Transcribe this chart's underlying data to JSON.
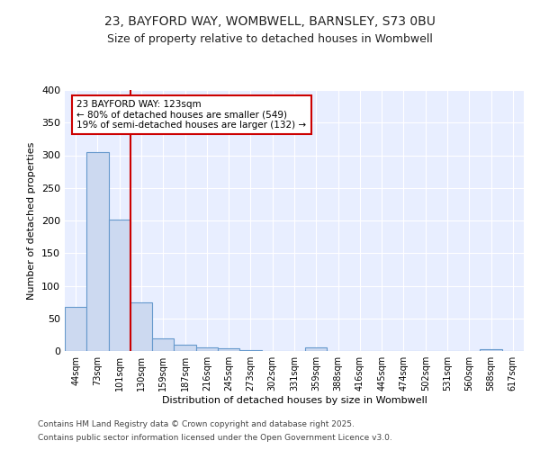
{
  "title1": "23, BAYFORD WAY, WOMBWELL, BARNSLEY, S73 0BU",
  "title2": "Size of property relative to detached houses in Wombwell",
  "xlabel": "Distribution of detached houses by size in Wombwell",
  "ylabel": "Number of detached properties",
  "categories": [
    "44sqm",
    "73sqm",
    "101sqm",
    "130sqm",
    "159sqm",
    "187sqm",
    "216sqm",
    "245sqm",
    "273sqm",
    "302sqm",
    "331sqm",
    "359sqm",
    "388sqm",
    "416sqm",
    "445sqm",
    "474sqm",
    "502sqm",
    "531sqm",
    "560sqm",
    "588sqm",
    "617sqm"
  ],
  "values": [
    67,
    305,
    202,
    75,
    19,
    9,
    5,
    4,
    1,
    0,
    0,
    5,
    0,
    0,
    0,
    0,
    0,
    0,
    0,
    3,
    0
  ],
  "bar_color": "#ccd9f0",
  "bar_edge_color": "#6699cc",
  "vline_color": "#cc0000",
  "annotation_text": "23 BAYFORD WAY: 123sqm\n← 80% of detached houses are smaller (549)\n19% of semi-detached houses are larger (132) →",
  "annotation_box_color": "#ffffff",
  "annotation_box_edge": "#cc0000",
  "ylim": [
    0,
    400
  ],
  "yticks": [
    0,
    50,
    100,
    150,
    200,
    250,
    300,
    350,
    400
  ],
  "footer1": "Contains HM Land Registry data © Crown copyright and database right 2025.",
  "footer2": "Contains public sector information licensed under the Open Government Licence v3.0.",
  "bg_color": "#ffffff",
  "plot_bg_color": "#e8eeff"
}
